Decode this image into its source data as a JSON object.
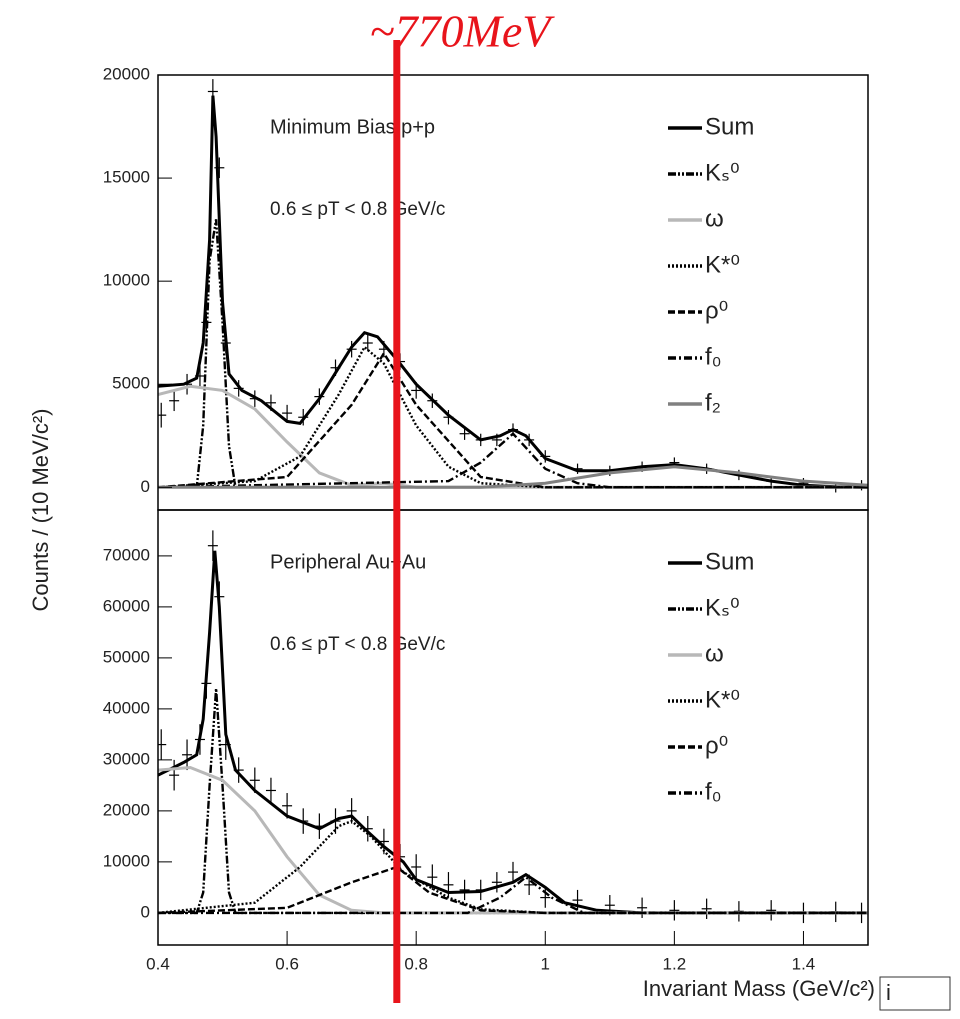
{
  "chart_data": [
    {
      "type": "line",
      "title": "Minimum Bias p+p",
      "subtitle": "0.6 ≤ pT < 0.8 GeV/c",
      "xlim": [
        0.4,
        1.5
      ],
      "ylim": [
        -1100,
        20000
      ],
      "yticks": [
        0,
        5000,
        10000,
        15000,
        20000
      ],
      "grid": false,
      "series": [
        {
          "name": "Sum",
          "color": "#000000",
          "style": "solid",
          "x": [
            0.4,
            0.44,
            0.46,
            0.47,
            0.48,
            0.485,
            0.49,
            0.5,
            0.51,
            0.53,
            0.56,
            0.6,
            0.62,
            0.65,
            0.68,
            0.7,
            0.72,
            0.74,
            0.77,
            0.8,
            0.85,
            0.9,
            0.93,
            0.95,
            0.97,
            1.0,
            1.05,
            1.1,
            1.15,
            1.2,
            1.25,
            1.3,
            1.35,
            1.4,
            1.45,
            1.5
          ],
          "values": [
            4900,
            5000,
            5300,
            7000,
            12000,
            19000,
            17000,
            9000,
            5500,
            4700,
            4200,
            3200,
            3100,
            4300,
            5800,
            6800,
            7500,
            7300,
            6200,
            5000,
            3500,
            2300,
            2500,
            2800,
            2500,
            1400,
            800,
            800,
            1000,
            1100,
            900,
            600,
            300,
            100,
            30,
            0
          ]
        },
        {
          "name": "Kₛ⁰",
          "color": "#000000",
          "style": "dash-dot-dot",
          "x": [
            0.4,
            0.46,
            0.47,
            0.48,
            0.49,
            0.5,
            0.51,
            0.52,
            1.5
          ],
          "values": [
            0,
            0,
            3000,
            11000,
            13000,
            8000,
            2000,
            0,
            0
          ]
        },
        {
          "name": "ω",
          "color": "#b8b8b8",
          "style": "solid",
          "x": [
            0.4,
            0.45,
            0.5,
            0.55,
            0.6,
            0.65,
            0.7,
            0.75,
            0.8,
            1.5
          ],
          "values": [
            4500,
            4900,
            4700,
            3800,
            2200,
            700,
            100,
            200,
            0,
            0
          ]
        },
        {
          "name": "K*⁰",
          "color": "#000000",
          "style": "dotted",
          "x": [
            0.4,
            0.55,
            0.62,
            0.68,
            0.72,
            0.75,
            0.8,
            0.85,
            0.9,
            1.0,
            1.5
          ],
          "values": [
            0,
            300,
            1500,
            4500,
            6800,
            6000,
            3000,
            1000,
            200,
            0,
            0
          ]
        },
        {
          "name": "ρ⁰",
          "color": "#000000",
          "style": "dashed",
          "x": [
            0.4,
            0.6,
            0.7,
            0.75,
            0.8,
            0.9,
            1.0,
            1.5
          ],
          "values": [
            0,
            500,
            4000,
            6500,
            4000,
            500,
            0,
            0
          ]
        },
        {
          "name": "f₀",
          "color": "#000000",
          "style": "dash-dot",
          "x": [
            0.4,
            0.85,
            0.9,
            0.95,
            1.0,
            1.05,
            1.1,
            1.5
          ],
          "values": [
            0,
            300,
            1200,
            2600,
            900,
            200,
            0,
            0
          ]
        },
        {
          "name": "f₂",
          "color": "#808080",
          "style": "solid",
          "x": [
            0.4,
            0.9,
            1.0,
            1.1,
            1.2,
            1.3,
            1.4,
            1.5
          ],
          "values": [
            0,
            0,
            200,
            700,
            1000,
            700,
            300,
            100
          ]
        }
      ],
      "points": {
        "x": [
          0.405,
          0.425,
          0.445,
          0.465,
          0.475,
          0.485,
          0.495,
          0.505,
          0.525,
          0.55,
          0.575,
          0.6,
          0.625,
          0.65,
          0.675,
          0.7,
          0.725,
          0.75,
          0.775,
          0.8,
          0.825,
          0.85,
          0.875,
          0.9,
          0.925,
          0.95,
          0.975,
          1.0,
          1.05,
          1.1,
          1.15,
          1.2,
          1.25,
          1.3,
          1.35,
          1.4,
          1.45,
          1.49
        ],
        "values": [
          3500,
          4200,
          5000,
          5400,
          8000,
          19200,
          15500,
          7000,
          4800,
          4300,
          4100,
          3600,
          3400,
          4400,
          5800,
          6700,
          7000,
          6700,
          6100,
          4700,
          4200,
          3400,
          2600,
          2300,
          2300,
          2800,
          2300,
          1500,
          900,
          800,
          1000,
          1200,
          900,
          600,
          300,
          200,
          0,
          100
        ],
        "errors": [
          600,
          500,
          500,
          500,
          500,
          600,
          500,
          500,
          400,
          400,
          400,
          400,
          400,
          400,
          400,
          400,
          400,
          400,
          400,
          400,
          350,
          350,
          300,
          300,
          300,
          300,
          300,
          300,
          250,
          250,
          250,
          250,
          250,
          250,
          250,
          250,
          250,
          250
        ]
      }
    },
    {
      "type": "line",
      "title": "Peripheral Au+Au",
      "subtitle": "0.6 ≤ pT < 0.8 GeV/c",
      "xlim": [
        0.4,
        1.5
      ],
      "ylim": [
        -6300,
        79000
      ],
      "yticks": [
        0,
        10000,
        20000,
        30000,
        40000,
        50000,
        60000,
        70000
      ],
      "xticks": [
        0.4,
        0.6,
        0.8,
        1,
        1.2,
        1.4
      ],
      "grid": false,
      "xlabel": "Invariant Mass (GeV/c²)",
      "series": [
        {
          "name": "Sum",
          "color": "#000000",
          "style": "solid",
          "x": [
            0.4,
            0.44,
            0.46,
            0.47,
            0.48,
            0.488,
            0.495,
            0.505,
            0.52,
            0.55,
            0.6,
            0.65,
            0.68,
            0.7,
            0.72,
            0.75,
            0.78,
            0.8,
            0.85,
            0.9,
            0.95,
            0.97,
            1.0,
            1.03,
            1.08,
            1.15,
            1.5
          ],
          "values": [
            27000,
            29500,
            31000,
            38000,
            55000,
            71000,
            60000,
            35000,
            28000,
            24000,
            19000,
            16500,
            18500,
            19000,
            16500,
            13000,
            10000,
            6500,
            4000,
            4200,
            6000,
            7500,
            5000,
            2000,
            500,
            0,
            0
          ]
        },
        {
          "name": "Kₛ⁰",
          "color": "#000000",
          "style": "dash-dot-dot",
          "x": [
            0.4,
            0.46,
            0.47,
            0.48,
            0.49,
            0.5,
            0.51,
            0.52,
            1.5
          ],
          "values": [
            0,
            0,
            4000,
            25000,
            44000,
            25000,
            4000,
            0,
            0
          ]
        },
        {
          "name": "ω",
          "color": "#b8b8b8",
          "style": "solid",
          "x": [
            0.4,
            0.45,
            0.5,
            0.55,
            0.6,
            0.65,
            0.7,
            0.75,
            0.8,
            1.5
          ],
          "values": [
            28000,
            28500,
            26000,
            20000,
            11000,
            3500,
            500,
            0,
            0,
            0
          ]
        },
        {
          "name": "K*⁰",
          "color": "#000000",
          "style": "dotted",
          "x": [
            0.4,
            0.55,
            0.62,
            0.68,
            0.7,
            0.73,
            0.78,
            0.85,
            0.9,
            1.0,
            1.5
          ],
          "values": [
            0,
            2000,
            9000,
            17000,
            18000,
            15000,
            8000,
            3000,
            700,
            0,
            0
          ]
        },
        {
          "name": "ρ⁰",
          "color": "#000000",
          "style": "dashed",
          "x": [
            0.4,
            0.6,
            0.7,
            0.77,
            0.82,
            0.9,
            1.0,
            1.5
          ],
          "values": [
            0,
            1000,
            6000,
            9000,
            4000,
            500,
            0,
            0
          ]
        },
        {
          "name": "f₀",
          "color": "#000000",
          "style": "dash-dot",
          "x": [
            0.4,
            0.88,
            0.93,
            0.97,
            1.01,
            1.06,
            1.5
          ],
          "values": [
            0,
            0,
            3000,
            7000,
            3000,
            0,
            0
          ]
        }
      ],
      "points": {
        "x": [
          0.405,
          0.425,
          0.445,
          0.465,
          0.475,
          0.485,
          0.495,
          0.505,
          0.525,
          0.55,
          0.575,
          0.6,
          0.625,
          0.65,
          0.675,
          0.7,
          0.725,
          0.75,
          0.775,
          0.8,
          0.825,
          0.85,
          0.875,
          0.9,
          0.925,
          0.95,
          0.975,
          1.0,
          1.05,
          1.1,
          1.15,
          1.2,
          1.25,
          1.3,
          1.35,
          1.4,
          1.45,
          1.49
        ],
        "values": [
          33000,
          27000,
          31000,
          34000,
          45000,
          72000,
          62000,
          33000,
          28000,
          26000,
          24000,
          21000,
          18000,
          17000,
          18000,
          20000,
          16500,
          14000,
          11000,
          9000,
          7000,
          5500,
          4500,
          4500,
          6000,
          8000,
          5500,
          3000,
          2500,
          1500,
          1000,
          500,
          800,
          300,
          500,
          0,
          200,
          0
        ],
        "errors": [
          3000,
          3000,
          3000,
          3000,
          3000,
          3000,
          3000,
          3000,
          2500,
          2500,
          2500,
          2500,
          2500,
          2500,
          2500,
          2500,
          2500,
          2500,
          2500,
          2500,
          2500,
          2500,
          2000,
          2000,
          2000,
          2000,
          2000,
          2000,
          2000,
          2000,
          2000,
          2000,
          2000,
          2000,
          2000,
          2000,
          2000,
          2000
        ]
      }
    }
  ],
  "ylabel": "Counts / (10 MeV/c²)",
  "marker": {
    "label": "~770MeV",
    "x": 0.77
  },
  "input_box": "i"
}
